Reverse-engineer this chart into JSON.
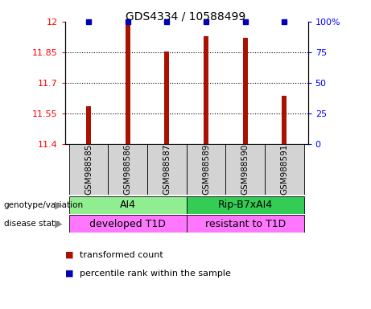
{
  "title": "GDS4334 / 10588499",
  "samples": [
    "GSM988585",
    "GSM988586",
    "GSM988587",
    "GSM988589",
    "GSM988590",
    "GSM988591"
  ],
  "red_values": [
    11.585,
    11.995,
    11.855,
    11.93,
    11.92,
    11.635
  ],
  "blue_values": [
    100,
    100,
    100,
    100,
    100,
    100
  ],
  "y_min": 11.4,
  "y_max": 12.0,
  "y_ticks": [
    11.4,
    11.55,
    11.7,
    11.85,
    12.0
  ],
  "y_tick_labels": [
    "11.4",
    "11.55",
    "11.7",
    "11.85",
    "12"
  ],
  "y2_ticks": [
    0,
    25,
    50,
    75,
    100
  ],
  "y2_tick_labels": [
    "0",
    "25",
    "50",
    "75",
    "100%"
  ],
  "genotype_labels": [
    "AI4",
    "Rip-B7xAI4"
  ],
  "genotype_colors": [
    "#90EE90",
    "#33CC55"
  ],
  "disease_labels": [
    "developed T1D",
    "resistant to T1D"
  ],
  "disease_color": "#FF77FF",
  "bar_color": "#AA1100",
  "dot_color": "#0000BB",
  "bg_color": "#FFFFFF",
  "group1_indices": [
    0,
    1,
    2
  ],
  "group2_indices": [
    3,
    4,
    5
  ],
  "bar_width": 0.12,
  "dot_size": 5
}
